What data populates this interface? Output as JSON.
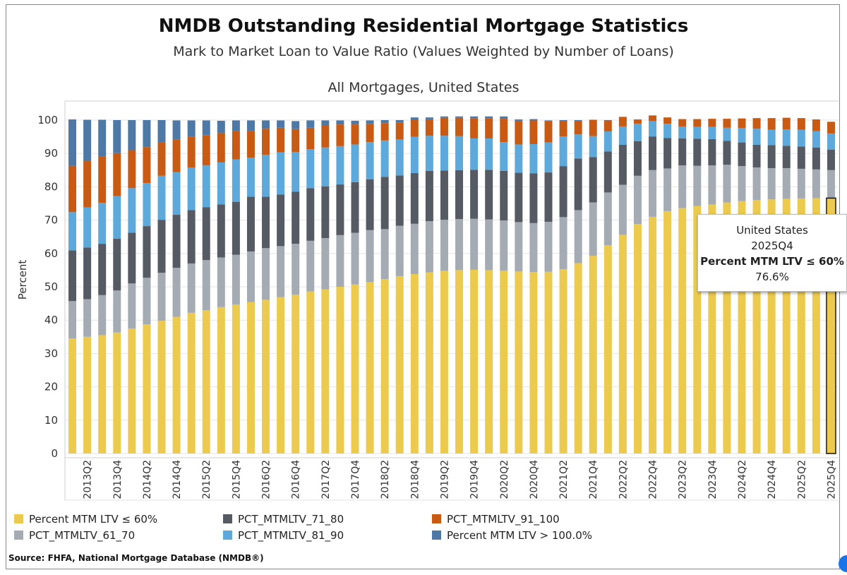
{
  "header": {
    "title": "NMDB Outstanding Residential Mortgage Statistics",
    "subtitle": "Mark to Market Loan to Value Ratio (Values Weighted by Number of Loans)",
    "panel_title": "All Mortgages,  United States"
  },
  "legend": {
    "items": [
      {
        "label": "Percent MTM LTV ≤ 60%",
        "color": "#EBCA4E"
      },
      {
        "label": "PCT_MTMLTV_61_70",
        "color": "#A5ABB3"
      },
      {
        "label": "PCT_MTMLTV_71_80",
        "color": "#555A63"
      },
      {
        "label": "PCT_MTMLTV_81_90",
        "color": "#5EA9DC"
      },
      {
        "label": "PCT_MTMLTV_91_100",
        "color": "#C85A14"
      },
      {
        "label": "Percent MTM LTV > 100.0%",
        "color": "#4E79A7"
      }
    ]
  },
  "source": "Source:  FHFA, National Mortgage Database (NMDB®)",
  "tooltip": {
    "region": "United States",
    "period": "2025Q4",
    "measure": "Percent MTM LTV ≤ 60%",
    "value": "76.6%"
  },
  "chart_data": {
    "type": "bar",
    "stacked": true,
    "ylabel": "Percent",
    "xlabel": "",
    "ylim": [
      0,
      100
    ],
    "yticks": [
      0,
      10,
      20,
      30,
      40,
      50,
      60,
      70,
      80,
      90,
      100
    ],
    "grid": true,
    "legend_position": "bottom",
    "categories": [
      "2013Q1",
      "2013Q2",
      "2013Q3",
      "2013Q4",
      "2014Q1",
      "2014Q2",
      "2014Q3",
      "2014Q4",
      "2015Q1",
      "2015Q2",
      "2015Q3",
      "2015Q4",
      "2016Q1",
      "2016Q2",
      "2016Q3",
      "2016Q4",
      "2017Q1",
      "2017Q2",
      "2017Q3",
      "2017Q4",
      "2018Q1",
      "2018Q2",
      "2018Q3",
      "2018Q4",
      "2019Q1",
      "2019Q2",
      "2019Q3",
      "2019Q4",
      "2020Q1",
      "2020Q2",
      "2020Q3",
      "2020Q4",
      "2021Q1",
      "2021Q2",
      "2021Q3",
      "2021Q4",
      "2022Q1",
      "2022Q2",
      "2022Q3",
      "2022Q4",
      "2023Q1",
      "2023Q2",
      "2023Q3",
      "2023Q4",
      "2024Q1",
      "2024Q2",
      "2024Q3",
      "2024Q4",
      "2025Q1",
      "2025Q2",
      "2025Q3",
      "2025Q4"
    ],
    "tick_labels": [
      "2013Q2",
      "2013Q4",
      "2014Q2",
      "2014Q4",
      "2015Q2",
      "2015Q4",
      "2016Q2",
      "2016Q4",
      "2017Q2",
      "2017Q4",
      "2018Q2",
      "2018Q4",
      "2019Q2",
      "2019Q4",
      "2020Q2",
      "2020Q4",
      "2021Q2",
      "2021Q4",
      "2022Q2",
      "2022Q4",
      "2023Q2",
      "2023Q4",
      "2024Q2",
      "2024Q4",
      "2025Q2",
      "2025Q4"
    ],
    "highlighted_category": "2025Q4",
    "series": [
      {
        "name": "Percent MTM LTV ≤ 60%",
        "color": "#EBCA4E",
        "values": [
          34.5,
          35,
          35.5,
          36.3,
          37.5,
          38.7,
          39.8,
          41,
          42.2,
          43,
          43.9,
          44.7,
          45.4,
          46.1,
          46.9,
          47.6,
          48.6,
          49.2,
          50,
          50.7,
          51.4,
          52.3,
          53.2,
          53.8,
          54.3,
          54.8,
          55,
          55.1,
          55,
          54.8,
          54.6,
          54.4,
          54.5,
          55.3,
          57.1,
          59.3,
          62.5,
          65.6,
          68.8,
          71,
          72.7,
          73.6,
          74.2,
          74.7,
          75.3,
          75.7,
          76,
          76.2,
          76.4,
          76.5,
          76.6,
          76.6
        ]
      },
      {
        "name": "PCT_MTMLTV_61_70",
        "color": "#A5ABB3",
        "values": [
          11.2,
          11.3,
          12,
          12.6,
          13.5,
          14,
          14.4,
          14.7,
          14.8,
          15,
          14.9,
          14.9,
          15.2,
          15.5,
          15.3,
          15.3,
          15.2,
          15.4,
          15.5,
          15.5,
          15.6,
          15,
          15.1,
          15.1,
          15.4,
          15.3,
          15.3,
          15.3,
          15.2,
          15.1,
          14.8,
          14.7,
          15,
          15.6,
          15.9,
          16,
          15.8,
          15,
          14.5,
          14,
          12.8,
          12.8,
          12.1,
          11.7,
          11.3,
          10.5,
          9.8,
          9.4,
          9.2,
          8.9,
          8.6,
          8.4
        ]
      },
      {
        "name": "PCT_MTMLTV_71_80",
        "color": "#555A63",
        "values": [
          15.2,
          15.5,
          15.4,
          15.5,
          15.2,
          15.5,
          15.9,
          15.9,
          16,
          15.9,
          15.9,
          15.9,
          16.4,
          15.4,
          15.5,
          15.6,
          15.8,
          15.5,
          15.2,
          15.2,
          15.2,
          15.7,
          15.1,
          15.2,
          15.1,
          14.8,
          14.7,
          14.7,
          14.9,
          14.9,
          14.8,
          14.9,
          14.8,
          15.3,
          15.5,
          13.6,
          12.3,
          12,
          10.4,
          10.1,
          9.1,
          8.1,
          8.1,
          7.9,
          7.2,
          7.1,
          6.8,
          6.9,
          6.7,
          6.7,
          6.6,
          6.1
        ]
      },
      {
        "name": "PCT_MTMLTV_81_90",
        "color": "#5EA9DC",
        "values": [
          11.5,
          12,
          12.3,
          12.8,
          13.4,
          12.9,
          13.2,
          12.8,
          12.8,
          12.5,
          12.6,
          12.7,
          11.7,
          12.6,
          12.6,
          11.9,
          11.7,
          11.7,
          11.5,
          11.3,
          11.2,
          10.9,
          10.8,
          10.9,
          10.5,
          10.4,
          10.2,
          9.4,
          9.4,
          8.6,
          8.5,
          8.8,
          9,
          8.9,
          7.2,
          6.3,
          6,
          5.5,
          5.2,
          4.6,
          4.3,
          3.6,
          3.6,
          3.7,
          3.9,
          4.3,
          4.8,
          4.6,
          4.9,
          5,
          4.9,
          4.9
        ]
      },
      {
        "name": "PCT_MTMLTV_91_100",
        "color": "#C85A14",
        "values": [
          13.9,
          13.9,
          13.8,
          12.9,
          11.4,
          10.8,
          10,
          9.8,
          9.3,
          9.1,
          8.8,
          8.6,
          8,
          7.8,
          7.4,
          6.9,
          6.4,
          6.5,
          6.5,
          6,
          5.5,
          5.2,
          5,
          5,
          4.9,
          5.4,
          5.5,
          6.1,
          6.1,
          7,
          7.1,
          7.1,
          6.3,
          4.7,
          4.1,
          4.8,
          3.3,
          2.8,
          1.3,
          1.7,
          1.9,
          2.2,
          2.3,
          2.4,
          2.7,
          2.9,
          3.2,
          3.5,
          3.5,
          3.5,
          3.5,
          3.5
        ]
      },
      {
        "name": "Percent MTM LTV > 100.0%",
        "color": "#4E79A7",
        "values": [
          13.9,
          12.4,
          11.1,
          9.9,
          9,
          8.1,
          6.7,
          5.7,
          4.8,
          4.4,
          3.7,
          3.1,
          3.2,
          2.5,
          2.2,
          2.4,
          2.2,
          1.6,
          1.2,
          1.1,
          1,
          0.9,
          0.8,
          0.8,
          0.6,
          0.4,
          0.4,
          0.5,
          0.5,
          0.7,
          0.4,
          0.4,
          0.3,
          0.2,
          0.2,
          0.1,
          0.1,
          0.1,
          0,
          0,
          0,
          0,
          0,
          0,
          0,
          0,
          0,
          0,
          0,
          0,
          0,
          0
        ]
      }
    ]
  }
}
